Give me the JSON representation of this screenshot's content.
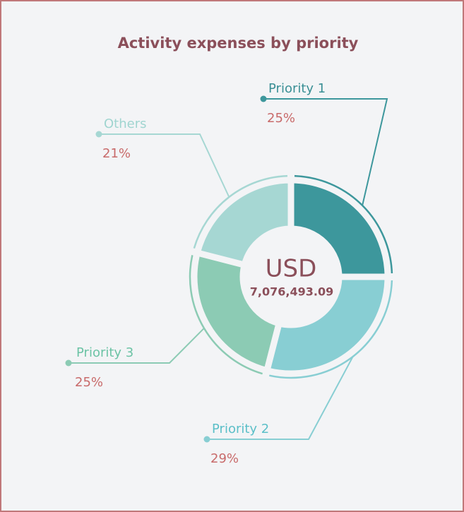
{
  "chart_data": {
    "type": "pie",
    "donut": true,
    "title": "Activity expenses by priority",
    "center_title": "USD",
    "center_text": "7,076,493.09",
    "categories": [
      "Priority 1",
      "Priority 2",
      "Priority 3",
      "Others"
    ],
    "values": [
      25,
      29,
      25,
      21
    ],
    "value_labels": [
      "25%",
      "29%",
      "25%",
      "21%"
    ],
    "colors": [
      "#3d979c",
      "#88ced3",
      "#8ccbb4",
      "#a6d7d3"
    ]
  }
}
